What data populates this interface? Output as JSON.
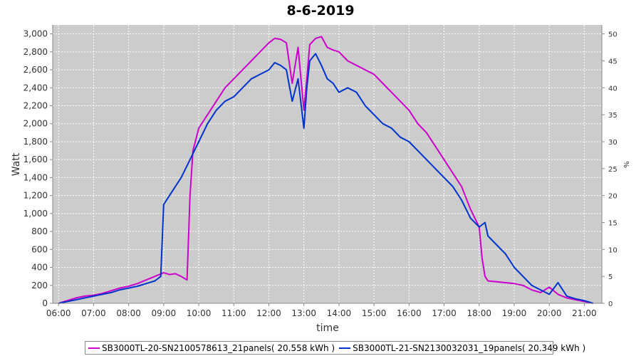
{
  "chart_data": {
    "type": "line",
    "title": "8-6-2019",
    "xlabel": "time",
    "ylabel": "Watt",
    "ylabel_right": "%",
    "xlim": [
      "05:50",
      "21:30"
    ],
    "ylim": [
      0,
      3100
    ],
    "ylim_right": [
      0,
      51.67
    ],
    "x_ticks": [
      "06:00",
      "07:00",
      "08:00",
      "09:00",
      "10:00",
      "11:00",
      "12:00",
      "13:00",
      "14:00",
      "15:00",
      "16:00",
      "17:00",
      "18:00",
      "19:00",
      "20:00",
      "21:00"
    ],
    "y_ticks": [
      "0",
      "200",
      "400",
      "600",
      "800",
      "1,000",
      "1,200",
      "1,400",
      "1,600",
      "1,800",
      "2,000",
      "2,200",
      "2,400",
      "2,600",
      "2,800",
      "3,000"
    ],
    "y_ticks_right": [
      "0",
      "5",
      "10",
      "15",
      "20",
      "25",
      "30",
      "35",
      "40",
      "45",
      "50"
    ],
    "grid": true,
    "legend_position": "bottom",
    "series": [
      {
        "name": "SB3000TL-20-SN2100578613_21panels( 20.558 kWh )",
        "color": "#cc00cc",
        "x": [
          "06:00",
          "06:15",
          "06:30",
          "06:45",
          "07:00",
          "07:15",
          "07:30",
          "07:45",
          "08:00",
          "08:15",
          "08:30",
          "08:45",
          "09:00",
          "09:10",
          "09:20",
          "09:30",
          "09:40",
          "09:45",
          "09:50",
          "10:00",
          "10:15",
          "10:30",
          "10:45",
          "11:00",
          "11:15",
          "11:30",
          "11:45",
          "12:00",
          "12:10",
          "12:20",
          "12:30",
          "12:40",
          "12:50",
          "13:00",
          "13:05",
          "13:10",
          "13:20",
          "13:30",
          "13:40",
          "13:50",
          "14:00",
          "14:15",
          "14:30",
          "14:45",
          "15:00",
          "15:15",
          "15:30",
          "15:45",
          "16:00",
          "16:15",
          "16:30",
          "16:45",
          "17:00",
          "17:15",
          "17:30",
          "17:45",
          "18:00",
          "18:05",
          "18:10",
          "18:15",
          "18:30",
          "18:45",
          "19:00",
          "19:15",
          "19:30",
          "19:45",
          "20:00",
          "20:15",
          "20:30",
          "20:45",
          "21:00",
          "21:15"
        ],
        "values": [
          0,
          30,
          60,
          80,
          90,
          110,
          140,
          170,
          190,
          220,
          260,
          300,
          340,
          320,
          330,
          300,
          260,
          1200,
          1700,
          1950,
          2100,
          2250,
          2400,
          2500,
          2600,
          2700,
          2800,
          2900,
          2950,
          2940,
          2900,
          2450,
          2850,
          2150,
          2500,
          2880,
          2950,
          2970,
          2850,
          2820,
          2800,
          2700,
          2650,
          2600,
          2550,
          2450,
          2350,
          2250,
          2150,
          2000,
          1900,
          1750,
          1600,
          1450,
          1300,
          1050,
          850,
          500,
          300,
          250,
          240,
          230,
          220,
          200,
          150,
          120,
          180,
          100,
          60,
          40,
          20,
          0
        ]
      },
      {
        "name": "SB3000TL-21-SN2130032031_19panels( 20.349 kWh )",
        "color": "#0033cc",
        "x": [
          "06:00",
          "06:15",
          "06:30",
          "06:45",
          "07:00",
          "07:15",
          "07:30",
          "07:45",
          "08:00",
          "08:15",
          "08:30",
          "08:45",
          "08:55",
          "09:00",
          "09:15",
          "09:30",
          "09:45",
          "10:00",
          "10:15",
          "10:30",
          "10:45",
          "11:00",
          "11:15",
          "11:30",
          "11:45",
          "12:00",
          "12:10",
          "12:20",
          "12:30",
          "12:40",
          "12:50",
          "13:00",
          "13:05",
          "13:10",
          "13:20",
          "13:30",
          "13:40",
          "13:50",
          "14:00",
          "14:15",
          "14:30",
          "14:45",
          "15:00",
          "15:15",
          "15:30",
          "15:45",
          "16:00",
          "16:15",
          "16:30",
          "16:45",
          "17:00",
          "17:15",
          "17:30",
          "17:45",
          "18:00",
          "18:10",
          "18:15",
          "18:30",
          "18:45",
          "19:00",
          "19:15",
          "19:30",
          "19:45",
          "20:00",
          "20:15",
          "20:30",
          "20:45",
          "21:00",
          "21:15"
        ],
        "values": [
          0,
          20,
          40,
          60,
          80,
          100,
          120,
          150,
          170,
          190,
          220,
          250,
          300,
          1100,
          1250,
          1400,
          1600,
          1800,
          2000,
          2150,
          2250,
          2300,
          2400,
          2500,
          2550,
          2600,
          2680,
          2650,
          2600,
          2250,
          2500,
          1950,
          2400,
          2700,
          2780,
          2650,
          2500,
          2450,
          2350,
          2400,
          2350,
          2200,
          2100,
          2000,
          1950,
          1850,
          1800,
          1700,
          1600,
          1500,
          1400,
          1300,
          1150,
          950,
          850,
          900,
          750,
          650,
          550,
          400,
          300,
          200,
          150,
          100,
          230,
          80,
          50,
          30,
          0
        ]
      }
    ]
  }
}
